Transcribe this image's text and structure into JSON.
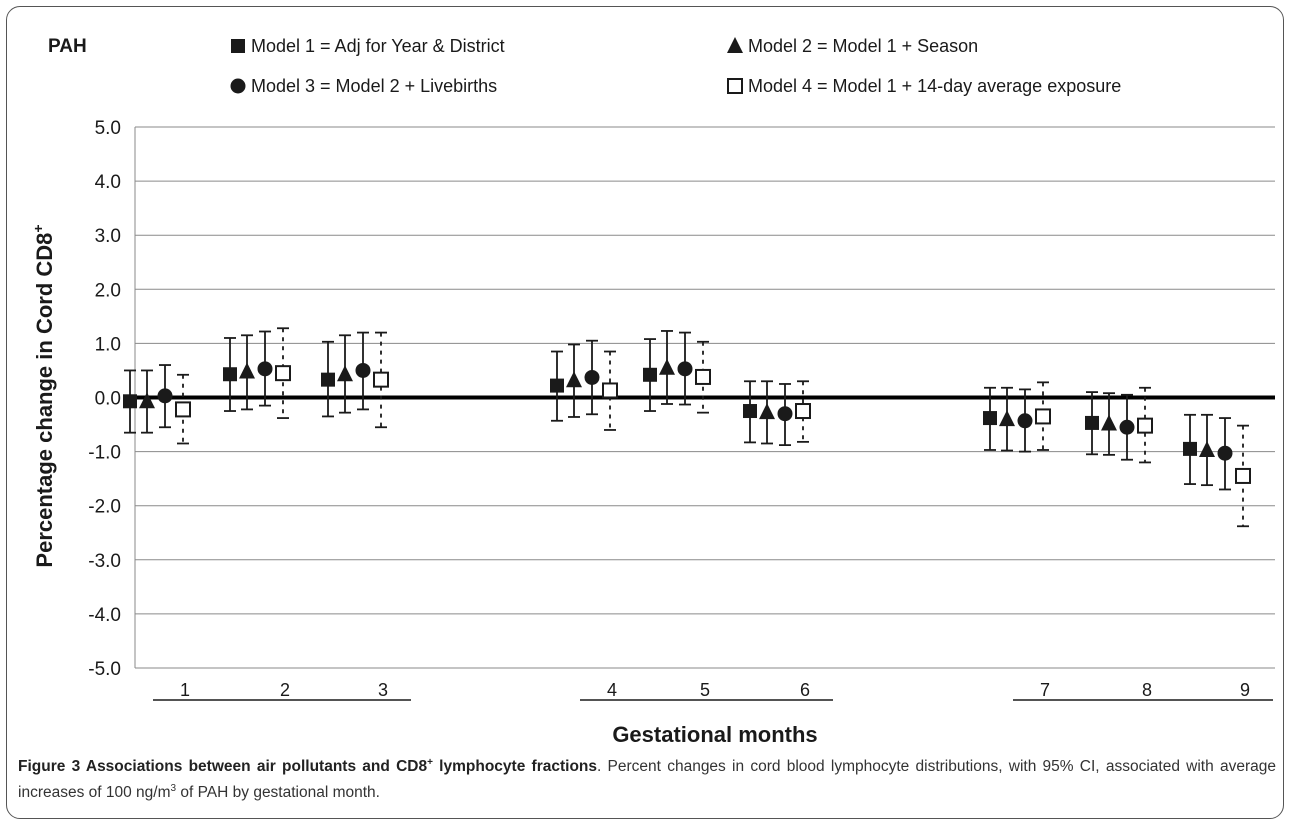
{
  "chart_data": {
    "type": "scatter",
    "panel_label": "PAH",
    "ylabel": "Percentage change in Cord CD8",
    "ylabel_superscript": "+",
    "xlabel": "Gestational months",
    "ylim": [
      -5.0,
      5.0
    ],
    "yticks": [
      "5.0",
      "4.0",
      "3.0",
      "2.0",
      "1.0",
      "0.0",
      "-1.0",
      "-2.0",
      "-3.0",
      "-4.0",
      "-5.0"
    ],
    "ytick_values": [
      5,
      4,
      3,
      2,
      1,
      0,
      -1,
      -2,
      -3,
      -4,
      -5
    ],
    "grid": true,
    "categories": [
      "1",
      "2",
      "3",
      "4",
      "5",
      "6",
      "7",
      "8",
      "9"
    ],
    "series": [
      {
        "name": "Model 1 = Adj for Year & District",
        "marker": "square-filled",
        "line": "solid",
        "values": [
          -0.07,
          0.43,
          0.33,
          0.22,
          0.42,
          -0.25,
          -0.38,
          -0.47,
          -0.95
        ],
        "ci_low": [
          -0.65,
          -0.25,
          -0.35,
          -0.43,
          -0.25,
          -0.83,
          -0.97,
          -1.05,
          -1.6
        ],
        "ci_high": [
          0.5,
          1.1,
          1.03,
          0.85,
          1.08,
          0.3,
          0.18,
          0.1,
          -0.32
        ]
      },
      {
        "name": "Model 2 = Model 1 + Season",
        "marker": "triangle-filled",
        "line": "solid",
        "values": [
          -0.07,
          0.48,
          0.43,
          0.32,
          0.55,
          -0.27,
          -0.4,
          -0.48,
          -0.97
        ],
        "ci_low": [
          -0.65,
          -0.22,
          -0.28,
          -0.36,
          -0.12,
          -0.85,
          -0.98,
          -1.06,
          -1.62
        ],
        "ci_high": [
          0.5,
          1.15,
          1.15,
          0.98,
          1.23,
          0.3,
          0.18,
          0.08,
          -0.32
        ]
      },
      {
        "name": "Model 3 = Model 2 + Livebirths",
        "marker": "circle-filled",
        "line": "solid",
        "values": [
          0.03,
          0.53,
          0.5,
          0.37,
          0.53,
          -0.3,
          -0.43,
          -0.55,
          -1.03
        ],
        "ci_low": [
          -0.55,
          -0.15,
          -0.22,
          -0.31,
          -0.13,
          -0.88,
          -1.0,
          -1.15,
          -1.7
        ],
        "ci_high": [
          0.6,
          1.22,
          1.2,
          1.05,
          1.2,
          0.25,
          0.15,
          0.05,
          -0.38
        ]
      },
      {
        "name": "Model 4 = Model 1 + 14-day average exposure",
        "marker": "square-open",
        "line": "dotted",
        "values": [
          -0.22,
          0.45,
          0.33,
          0.13,
          0.38,
          -0.25,
          -0.35,
          -0.52,
          -1.45
        ],
        "ci_low": [
          -0.85,
          -0.38,
          -0.55,
          -0.6,
          -0.28,
          -0.82,
          -0.97,
          -1.2,
          -2.38
        ],
        "ci_high": [
          0.42,
          1.28,
          1.2,
          0.85,
          1.03,
          0.3,
          0.28,
          0.18,
          -0.52
        ]
      }
    ]
  },
  "caption": {
    "bold_prefix": "Figure 3 Associations between air pollutants and CD8",
    "bold_sup": "+",
    "bold_suffix": " lymphocyte fractions",
    "text_1": ". Percent changes in cord blood lymphocyte distributions, with 95% CI, associated with average increases of 100 ng/m",
    "text_sup": "3",
    "text_2": " of PAH by gestational month."
  }
}
